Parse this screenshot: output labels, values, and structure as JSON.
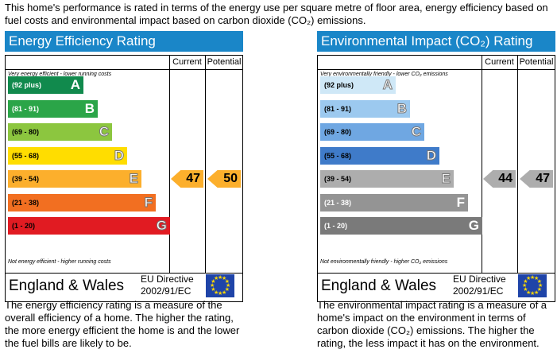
{
  "intro": "This home's performance is rated in terms of the energy use per square metre of floor area, energy efficiency based on fuel costs and environmental impact based on carbon dioxide (CO₂) emissions.",
  "panels": [
    {
      "title": "Energy Efficiency Rating",
      "title_color": "#1a86c8",
      "col_current": "Current",
      "col_potential": "Potential",
      "top_caption": "Very energy efficient - lower running costs",
      "bottom_caption": "Not energy efficient - higher running costs",
      "bands": [
        {
          "range": "(92 plus)",
          "letter": "A",
          "color": "#118a4d",
          "text_color": "#ffffff"
        },
        {
          "range": "(81 - 91)",
          "letter": "B",
          "color": "#2ba548",
          "text_color": "#ffffff"
        },
        {
          "range": "(69 - 80)",
          "letter": "C",
          "color": "#8cc63f",
          "text_color": "#000000"
        },
        {
          "range": "(55 - 68)",
          "letter": "D",
          "color": "#ffdd00",
          "text_color": "#000000"
        },
        {
          "range": "(39 - 54)",
          "letter": "E",
          "color": "#fcaf2c",
          "text_color": "#000000"
        },
        {
          "range": "(21 - 38)",
          "letter": "F",
          "color": "#f26f21",
          "text_color": "#000000"
        },
        {
          "range": "(1 - 20)",
          "letter": "G",
          "color": "#e11b22",
          "text_color": "#000000"
        }
      ],
      "current": {
        "value": "47",
        "band_index": 4,
        "color": "#fcaf2c"
      },
      "potential": {
        "value": "50",
        "band_index": 4,
        "color": "#fcaf2c"
      },
      "region": "England & Wales",
      "directive_line1": "EU Directive",
      "directive_line2": "2002/91/EC",
      "description": "The energy efficiency rating is a measure of the overall efficiency of a home. The higher the rating, the more energy efficient the home is and the lower the fuel bills are likely to be."
    },
    {
      "title": "Environmental Impact (CO₂) Rating",
      "title_color": "#1a86c8",
      "col_current": "Current",
      "col_potential": "Potential",
      "top_caption": "Very environmentally friendly - lower CO₂ emissions",
      "bottom_caption": "Not environmentally friendly - higher CO₂ emissions",
      "bands": [
        {
          "range": "(92 plus)",
          "letter": "A",
          "color": "#cfe8f7",
          "text_color": "#000000"
        },
        {
          "range": "(81 - 91)",
          "letter": "B",
          "color": "#9cc9ef",
          "text_color": "#000000"
        },
        {
          "range": "(69 - 80)",
          "letter": "C",
          "color": "#6fa7e2",
          "text_color": "#000000"
        },
        {
          "range": "(55 - 68)",
          "letter": "D",
          "color": "#3f7bc9",
          "text_color": "#000000"
        },
        {
          "range": "(39 - 54)",
          "letter": "E",
          "color": "#adadad",
          "text_color": "#000000"
        },
        {
          "range": "(21 - 38)",
          "letter": "F",
          "color": "#949494",
          "text_color": "#ffffff"
        },
        {
          "range": "(1 - 20)",
          "letter": "G",
          "color": "#7a7a7a",
          "text_color": "#ffffff"
        }
      ],
      "current": {
        "value": "44",
        "band_index": 4,
        "color": "#adadad"
      },
      "potential": {
        "value": "47",
        "band_index": 4,
        "color": "#adadad"
      },
      "region": "England & Wales",
      "directive_line1": "EU Directive",
      "directive_line2": "2002/91/EC",
      "description": "The environmental impact rating is a measure of a home's impact on the environment in terms of carbon dioxide (CO₂) emissions. The higher the rating, the less impact it has on the environment."
    }
  ],
  "icons": {
    "eu_flag": "eu-flag-icon"
  }
}
